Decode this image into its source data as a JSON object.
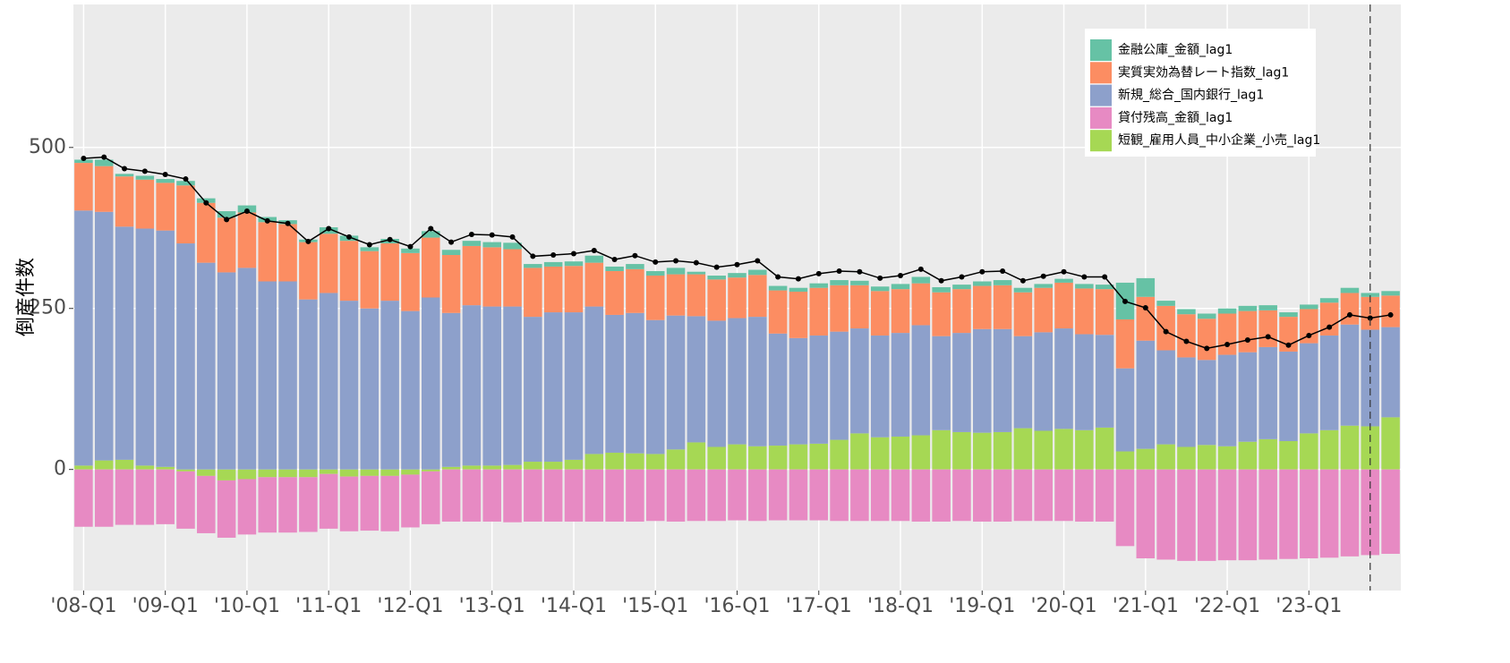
{
  "chart_data": {
    "type": "bar",
    "stacked": true,
    "y_label": "倒産件数",
    "categories": [
      "'08-Q1",
      null,
      null,
      null,
      "'09-Q1",
      null,
      null,
      null,
      "'10-Q1",
      null,
      null,
      null,
      "'11-Q1",
      null,
      null,
      null,
      "'12-Q1",
      null,
      null,
      null,
      "'13-Q1",
      null,
      null,
      null,
      "'14-Q1",
      null,
      null,
      null,
      "'15-Q1",
      null,
      null,
      null,
      "'16-Q1",
      null,
      null,
      null,
      "'17-Q1",
      null,
      null,
      null,
      "'18-Q1",
      null,
      null,
      null,
      "'19-Q1",
      null,
      null,
      null,
      "'20-Q1",
      null,
      null,
      null,
      "'21-Q1",
      null,
      null,
      null,
      "'22-Q1",
      null,
      null,
      null,
      "'23-Q1",
      null,
      null,
      null,
      null
    ],
    "series": [
      {
        "name": "金融公庫_金額_lag1",
        "color": "#66c2a5",
        "values": [
          5,
          10,
          4,
          6,
          6,
          7,
          7,
          10,
          11,
          8,
          6,
          4,
          10,
          8,
          6,
          7,
          7,
          10,
          8,
          8,
          8,
          10,
          6,
          7,
          7,
          11,
          7,
          8,
          7,
          10,
          4,
          6,
          7,
          8,
          7,
          6,
          7,
          8,
          7,
          7,
          8,
          10,
          8,
          7,
          7,
          8,
          7,
          6,
          6,
          7,
          7,
          57,
          29,
          8,
          8,
          8,
          8,
          8,
          8,
          7,
          7,
          7,
          8,
          6,
          7
        ]
      },
      {
        "name": "実質実効為替レート指数_lag1",
        "color": "#fc8d62",
        "values": [
          74,
          71,
          78,
          76,
          74,
          90,
          93,
          85,
          86,
          92,
          89,
          89,
          92,
          93,
          89,
          89,
          90,
          93,
          90,
          92,
          92,
          89,
          76,
          71,
          72,
          68,
          68,
          68,
          69,
          64,
          65,
          64,
          63,
          65,
          67,
          72,
          74,
          72,
          67,
          69,
          68,
          65,
          68,
          68,
          67,
          68,
          68,
          69,
          71,
          71,
          71,
          76,
          68,
          69,
          67,
          64,
          64,
          64,
          57,
          54,
          53,
          51,
          49,
          51,
          49
        ]
      },
      {
        "name": "新規_総合_国内銀行_lag1",
        "color": "#8da0cb",
        "values": [
          396,
          386,
          362,
          368,
          367,
          351,
          321,
          306,
          313,
          292,
          292,
          264,
          274,
          262,
          250,
          262,
          246,
          267,
          239,
          249,
          247,
          246,
          225,
          232,
          229,
          229,
          214,
          218,
          208,
          208,
          196,
          196,
          196,
          201,
          174,
          165,
          168,
          168,
          163,
          158,
          161,
          171,
          146,
          154,
          161,
          160,
          143,
          153,
          156,
          149,
          144,
          129,
          168,
          146,
          139,
          132,
          142,
          139,
          143,
          139,
          140,
          147,
          157,
          150,
          140
        ]
      },
      {
        "name": "貸付残高_金額_lag1",
        "color": "#e78ac3",
        "values": [
          -89,
          -89,
          -86,
          -86,
          -85,
          -89,
          -89,
          -89,
          -86,
          -86,
          -86,
          -85,
          -85,
          -85,
          -85,
          -86,
          -82,
          -82,
          -81,
          -81,
          -81,
          -82,
          -81,
          -81,
          -81,
          -81,
          -81,
          -81,
          -80,
          -81,
          -80,
          -80,
          -79,
          -80,
          -79,
          -79,
          -79,
          -80,
          -80,
          -80,
          -80,
          -81,
          -81,
          -80,
          -81,
          -81,
          -80,
          -80,
          -80,
          -81,
          -81,
          -119,
          -138,
          -140,
          -142,
          -142,
          -141,
          -141,
          -140,
          -139,
          -138,
          -137,
          -135,
          -133,
          -131
        ]
      },
      {
        "name": "短観_雇用人員_中小企業_小売_lag1",
        "color": "#a6d854",
        "values": [
          6,
          14,
          15,
          6,
          4,
          -3,
          -10,
          -17,
          -15,
          -12,
          -12,
          -12,
          -7,
          -11,
          -10,
          -10,
          -8,
          -3,
          4,
          6,
          6,
          7,
          12,
          12,
          15,
          24,
          26,
          25,
          24,
          31,
          42,
          35,
          39,
          36,
          37,
          39,
          40,
          46,
          56,
          50,
          51,
          53,
          61,
          58,
          57,
          58,
          64,
          60,
          63,
          61,
          65,
          28,
          32,
          39,
          35,
          38,
          36,
          43,
          47,
          44,
          56,
          61,
          68,
          67,
          81
        ]
      }
    ],
    "line": {
      "color": "#000000",
      "values": [
        483,
        485,
        467,
        463,
        458,
        451,
        414,
        388,
        401,
        386,
        382,
        354,
        374,
        361,
        349,
        357,
        346,
        374,
        353,
        365,
        364,
        361,
        331,
        333,
        335,
        340,
        326,
        332,
        322,
        324,
        321,
        314,
        318,
        324,
        299,
        296,
        304,
        308,
        307,
        297,
        301,
        311,
        293,
        299,
        307,
        308,
        293,
        300,
        307,
        299,
        299,
        261,
        251,
        214,
        199,
        188,
        194,
        201,
        206,
        193,
        208,
        221,
        240,
        235,
        240
      ]
    },
    "ylim": [
      -188,
      722
    ],
    "yticks": [
      0,
      250,
      500
    ],
    "grid": true
  }
}
